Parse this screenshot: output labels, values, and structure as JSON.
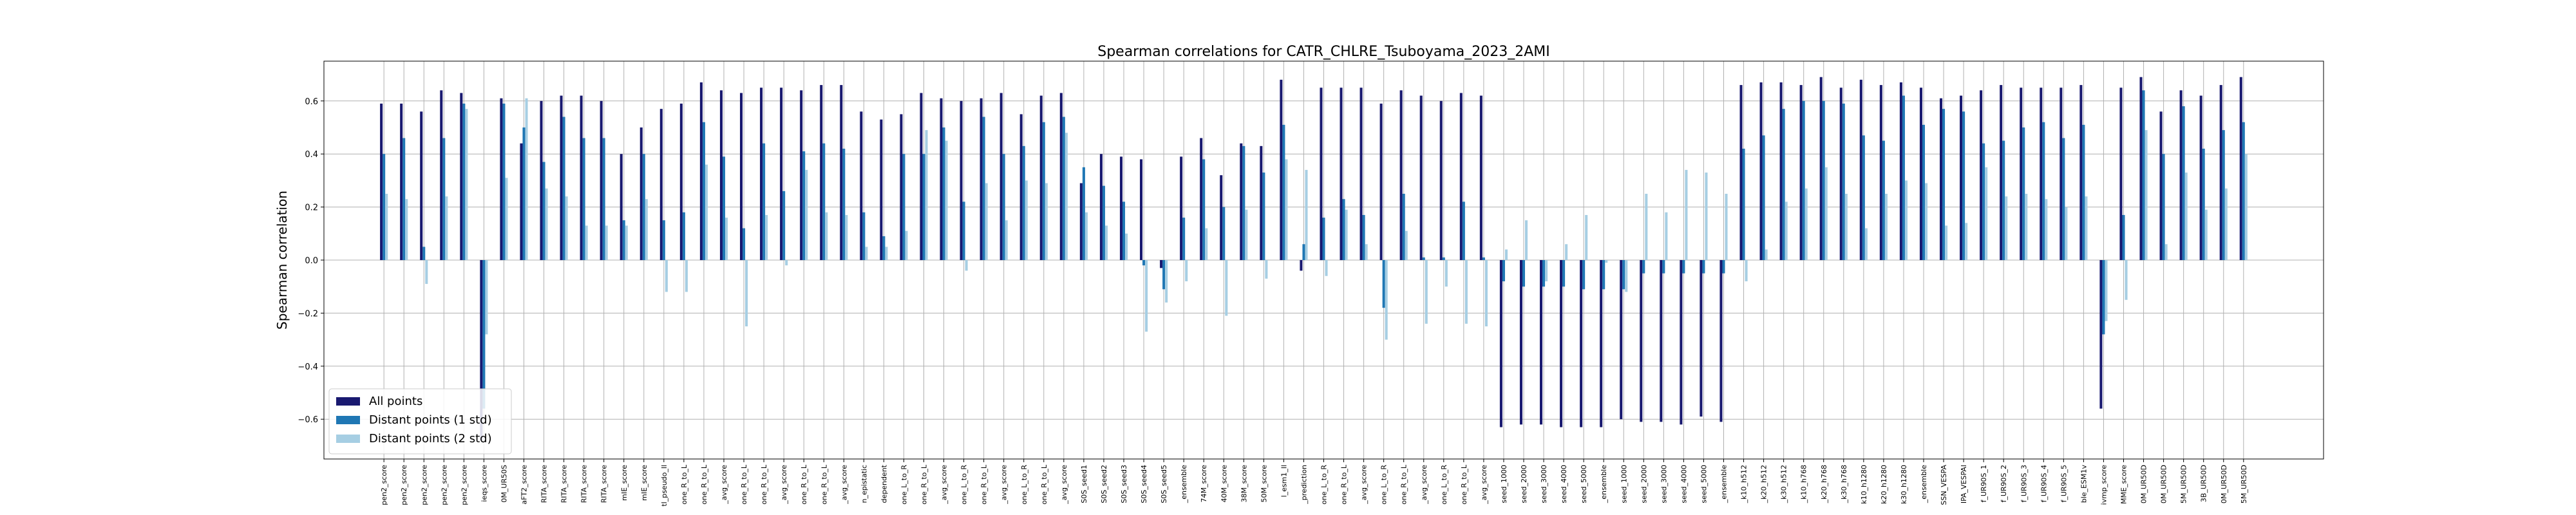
{
  "chart_data": {
    "type": "bar",
    "title": "Spearman correlations for CATR_CHLRE_Tsuboyama_2023_2AMI",
    "xlabel": "",
    "ylabel": "Spearman correlation",
    "ylim": [
      -0.75,
      0.75
    ],
    "yticks": [
      "−0.6",
      "−0.4",
      "−0.2",
      "0.0",
      "0.2",
      "0.4",
      "0.6"
    ],
    "ytick_values": [
      -0.6,
      -0.4,
      -0.2,
      0.0,
      0.2,
      0.4,
      0.6
    ],
    "grid": true,
    "legend_position": "lower-left",
    "categories": [
      "pen2_score",
      "pen2_score",
      "pen2_score",
      "pen2_score",
      "pen2_score",
      "ieqs_score",
      "0M_UR50S",
      "aFT2_score",
      "RITA_score",
      "RITA_score",
      "RITA_score",
      "RITA_score",
      "mIE_score",
      "mIE_score",
      "tl_pseudo_ll",
      "one_R_to_L",
      "one_R_to_L",
      "_avg_score",
      "one_R_to_L",
      "one_R_to_L",
      "_avg_score",
      "one_R_to_L",
      "one_R_to_L",
      "_avg_score",
      "n_epistatic",
      "dependent",
      "one_L_to_R",
      "one_R_to_L",
      "_avg_score",
      "one_L_to_R",
      "one_R_to_L",
      "_avg_score",
      "one_L_to_R",
      "one_R_to_L",
      "_avg_score",
      "S0S_seed1",
      "S0S_seed2",
      "S0S_seed3",
      "S0S_seed4",
      "S0S_seed5",
      "_ensemble",
      "74M_score",
      "40M_score",
      "38M_score",
      "50M_score",
      "l_esm1_ll",
      "_prediction",
      "one_L_to_R",
      "one_R_to_L",
      "_avg_score",
      "one_L_to_R",
      "one_R_to_L",
      "_avg_score",
      "one_L_to_R",
      "one_R_to_L",
      "_avg_score",
      "seed_1000",
      "seed_2000",
      "seed_3000",
      "seed_4000",
      "seed_5000",
      "_ensemble",
      "seed_1000",
      "seed_2000",
      "seed_3000",
      "seed_4000",
      "seed_5000",
      "_ensemble",
      "_k10_h512",
      "_k20_h512",
      "_k30_h512",
      "_k10_h768",
      "_k20_h768",
      "_k30_h768",
      "k10_h1280",
      "k20_h1280",
      "k30_h1280",
      "_ensemble",
      "SSN_VESPA",
      "IPA_VESPAl",
      "f_UR90S_1",
      "f_UR90S_2",
      "f_UR90S_3",
      "f_UR90S_4",
      "f_UR90S_5",
      "ble_ESM1v",
      "ivmp_score",
      "MME_score",
      "0M_UR50D",
      "0M_UR50D",
      "5M_UR50D",
      "3B_UR50D",
      "0M_UR50D",
      "5M_UR50D"
    ],
    "series": [
      {
        "name": "All points",
        "color": "#191970",
        "values": [
          0.59,
          0.59,
          0.56,
          0.64,
          0.63,
          -0.68,
          0.61,
          0.44,
          0.6,
          0.62,
          0.62,
          0.6,
          0.4,
          0.5,
          0.57,
          0.59,
          0.67,
          0.64,
          0.63,
          0.65,
          0.65,
          0.64,
          0.66,
          0.66,
          0.56,
          0.53,
          0.55,
          0.63,
          0.61,
          0.6,
          0.61,
          0.63,
          0.55,
          0.62,
          0.63,
          0.29,
          0.4,
          0.39,
          0.38,
          -0.03,
          0.39,
          0.46,
          0.32,
          0.44,
          0.43,
          0.68,
          -0.04,
          0.65,
          0.65,
          0.65,
          0.59,
          0.64,
          0.62,
          0.6,
          0.63,
          0.62,
          -0.63,
          -0.62,
          -0.62,
          -0.63,
          -0.63,
          -0.63,
          -0.6,
          -0.61,
          -0.61,
          -0.62,
          -0.59,
          -0.61,
          0.66,
          0.67,
          0.67,
          0.66,
          0.69,
          0.65,
          0.68,
          0.66,
          0.67,
          0.65,
          0.61,
          0.62,
          0.64,
          0.66,
          0.65,
          0.65,
          0.65,
          0.66,
          -0.56,
          0.65,
          0.69,
          0.56,
          0.64,
          0.62,
          0.66,
          0.69
        ]
      },
      {
        "name": "Distant points (1 std)",
        "color": "#1f77b4",
        "values": [
          0.4,
          0.46,
          0.05,
          0.46,
          0.59,
          -0.56,
          0.59,
          0.5,
          0.37,
          0.54,
          0.46,
          0.46,
          0.15,
          0.4,
          0.15,
          0.18,
          0.52,
          0.39,
          0.12,
          0.44,
          0.26,
          0.41,
          0.44,
          0.42,
          0.18,
          0.09,
          0.4,
          0.4,
          0.5,
          0.22,
          0.54,
          0.4,
          0.43,
          0.52,
          0.54,
          0.35,
          0.28,
          0.22,
          -0.02,
          -0.11,
          0.16,
          0.38,
          0.2,
          0.43,
          0.33,
          0.51,
          0.06,
          0.16,
          0.23,
          0.17,
          -0.18,
          0.25,
          0.01,
          0.01,
          0.22,
          0.01,
          -0.08,
          -0.1,
          -0.1,
          -0.1,
          -0.11,
          -0.11,
          -0.11,
          -0.05,
          -0.05,
          -0.05,
          -0.05,
          -0.05,
          0.42,
          0.47,
          0.57,
          0.6,
          0.6,
          0.59,
          0.47,
          0.45,
          0.62,
          0.51,
          0.57,
          0.56,
          0.44,
          0.45,
          0.5,
          0.52,
          0.46,
          0.51,
          -0.28,
          0.17,
          0.64,
          0.4,
          0.58,
          0.42,
          0.49,
          0.52
        ]
      },
      {
        "name": "Distant points (2 std)",
        "color": "#a6cee3",
        "values": [
          0.25,
          0.23,
          -0.09,
          0.24,
          0.57,
          -0.28,
          0.31,
          0.61,
          0.27,
          0.24,
          0.13,
          0.13,
          0.13,
          0.23,
          -0.12,
          -0.12,
          0.36,
          0.16,
          -0.25,
          0.17,
          -0.02,
          0.34,
          0.18,
          0.17,
          0.05,
          0.05,
          0.11,
          0.49,
          0.45,
          -0.04,
          0.29,
          0.15,
          0.3,
          0.29,
          0.48,
          0.18,
          0.13,
          0.1,
          -0.27,
          -0.16,
          -0.08,
          0.12,
          -0.21,
          0.19,
          -0.07,
          0.38,
          0.34,
          -0.06,
          0.19,
          0.06,
          -0.3,
          0.11,
          -0.24,
          -0.1,
          -0.24,
          -0.25,
          0.04,
          0.15,
          -0.08,
          0.06,
          0.17,
          -0.01,
          -0.12,
          0.25,
          0.18,
          0.34,
          0.33,
          0.25,
          -0.08,
          0.04,
          0.22,
          0.27,
          0.35,
          0.25,
          0.12,
          0.25,
          0.3,
          0.29,
          0.13,
          0.14,
          0.35,
          0.24,
          0.25,
          0.23,
          0.2,
          0.24,
          -0.23,
          -0.15,
          0.49,
          0.06,
          0.33,
          0.19,
          0.27,
          0.4
        ]
      }
    ]
  }
}
